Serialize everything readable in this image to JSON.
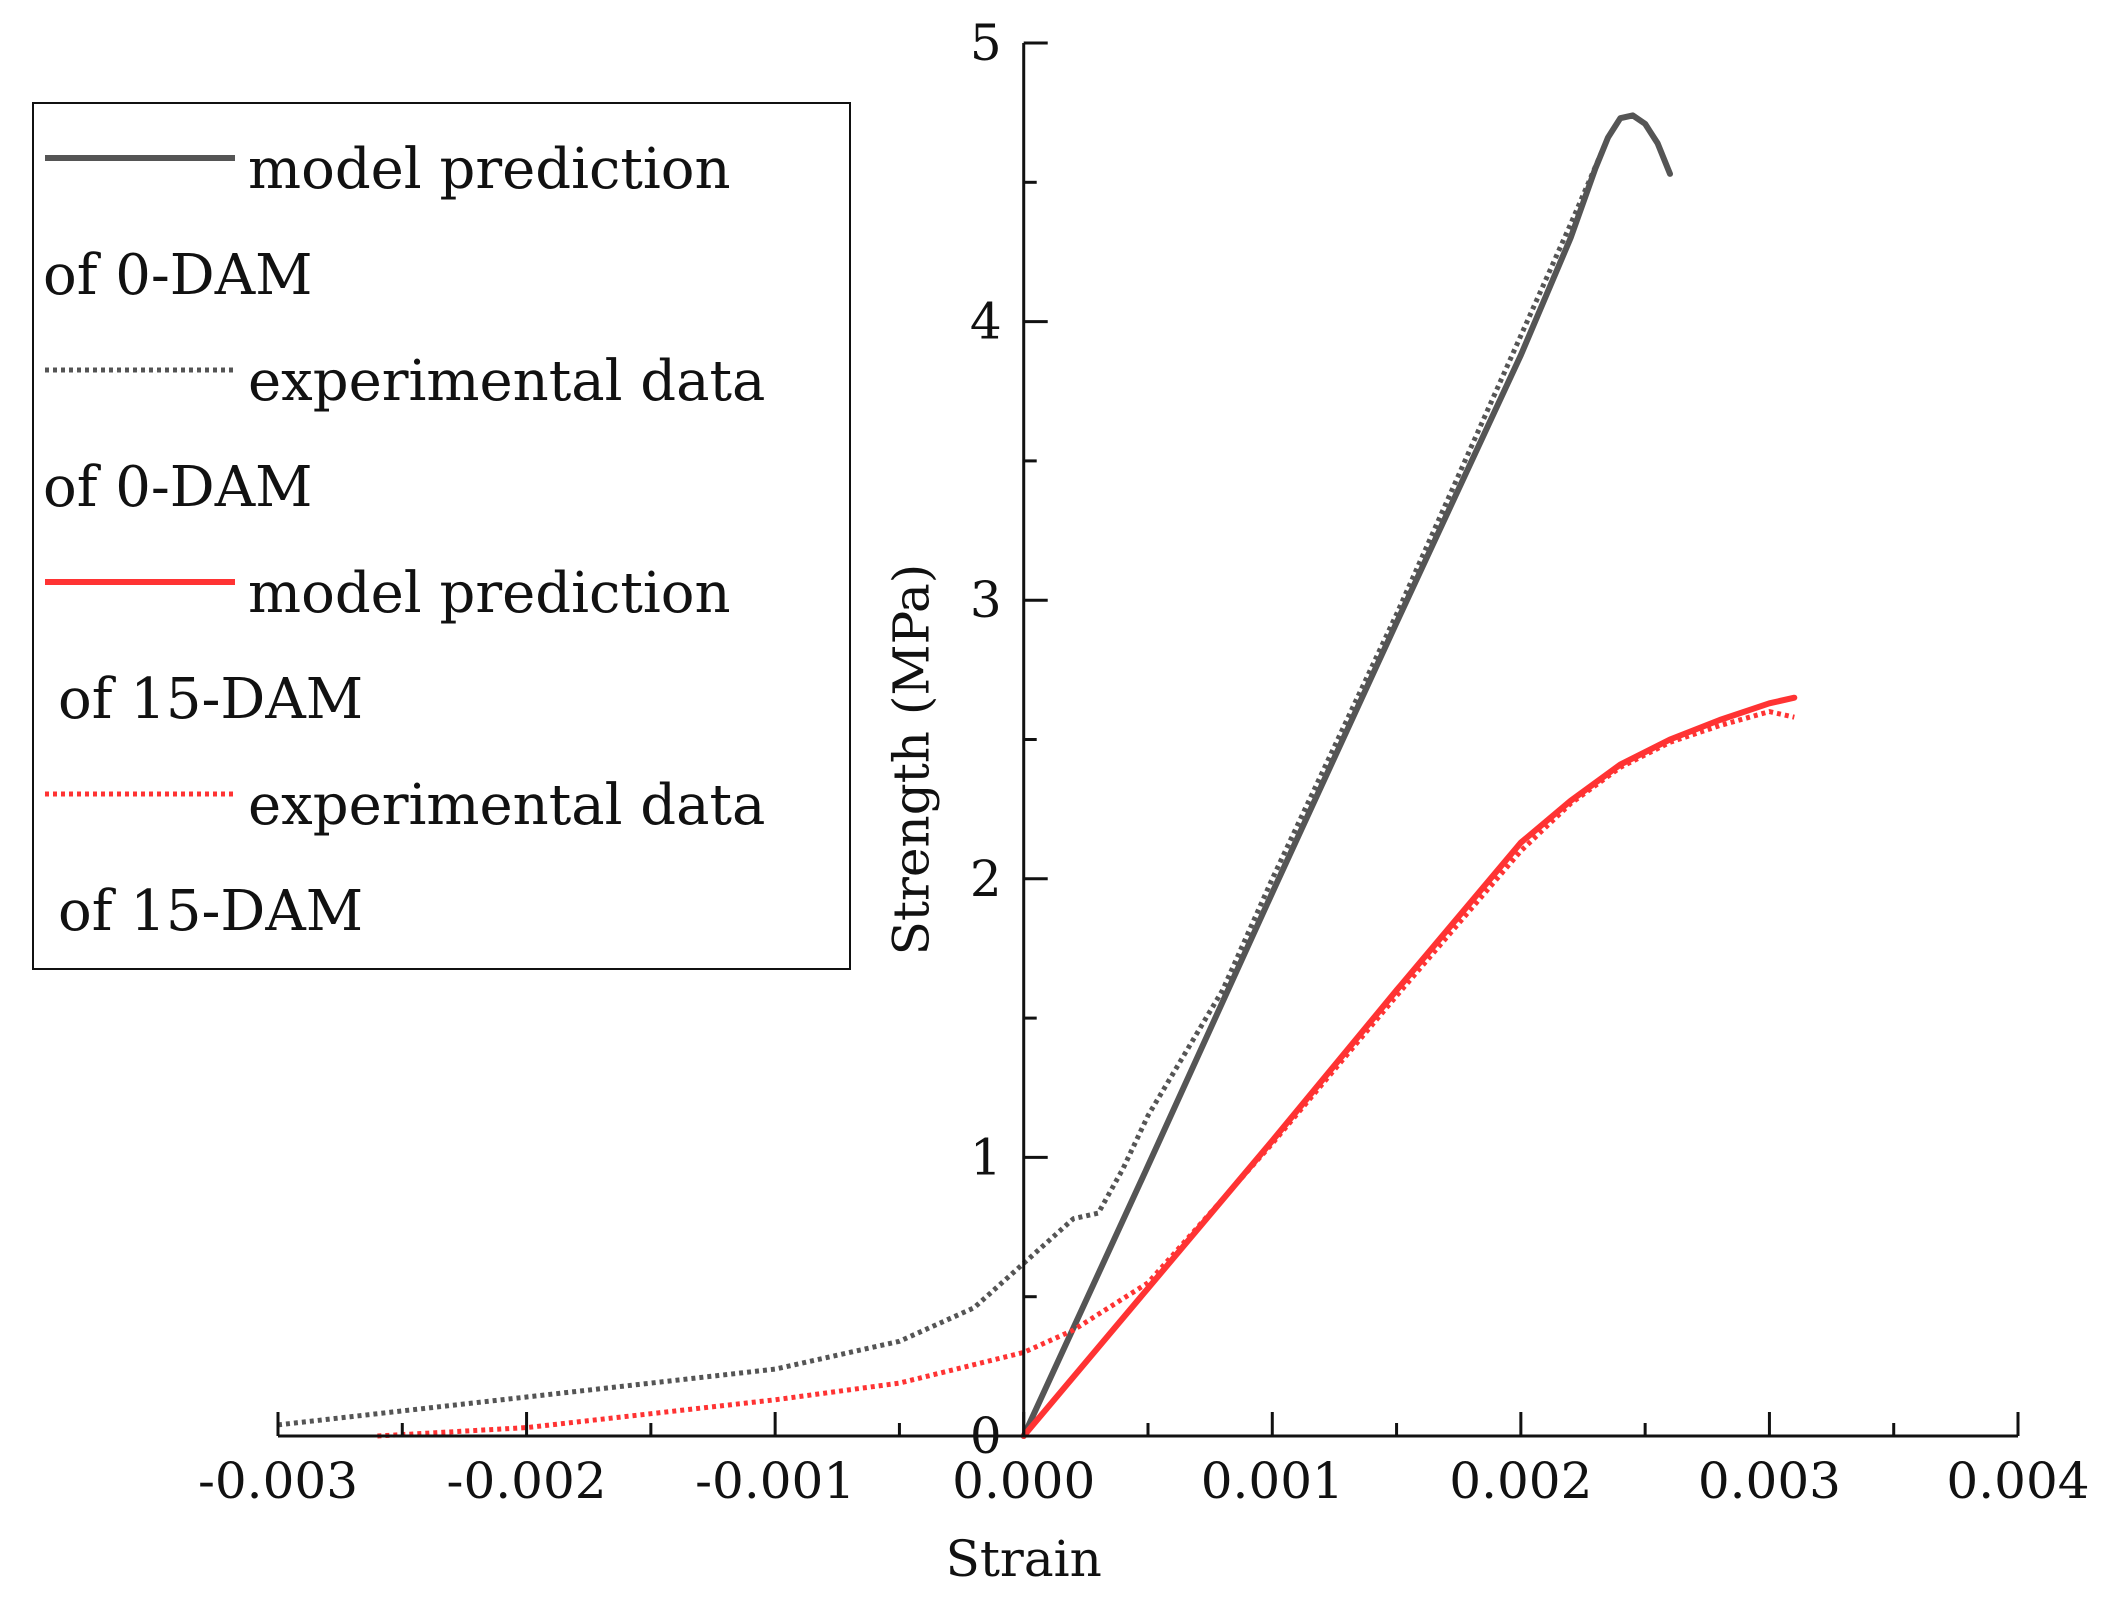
{
  "chart_data": {
    "type": "line",
    "title": "",
    "xlabel": "Strain",
    "ylabel": "Strength (MPa)",
    "xlim": [
      -0.003,
      0.004
    ],
    "ylim": [
      0,
      5
    ],
    "x_ticks": [
      "-0.003",
      "-0.002",
      "-0.001",
      "0.000",
      "0.001",
      "0.002",
      "0.003",
      "0.004"
    ],
    "x_tick_values": [
      -0.003,
      -0.002,
      -0.001,
      0.0,
      0.001,
      0.002,
      0.003,
      0.004
    ],
    "y_ticks": [
      "0",
      "1",
      "2",
      "3",
      "4",
      "5"
    ],
    "y_tick_values": [
      0,
      1,
      2,
      3,
      4,
      5
    ],
    "grid": false,
    "legend_position": "top-left",
    "series": [
      {
        "name": "model prediction of 0-DAM",
        "legend_lines": [
          "model prediction",
          "of 0-DAM"
        ],
        "color": "#555555",
        "style": "solid",
        "points": [
          [
            0.0,
            0.0
          ],
          [
            0.0005,
            0.97
          ],
          [
            0.001,
            1.95
          ],
          [
            0.0015,
            2.92
          ],
          [
            0.002,
            3.88
          ],
          [
            0.0022,
            4.3
          ],
          [
            0.0023,
            4.55
          ],
          [
            0.00235,
            4.66
          ],
          [
            0.0024,
            4.73
          ],
          [
            0.00245,
            4.74
          ],
          [
            0.0025,
            4.71
          ],
          [
            0.00255,
            4.64
          ],
          [
            0.0026,
            4.53
          ]
        ]
      },
      {
        "name": "experimental data of 0-DAM",
        "legend_lines": [
          "experimental data",
          "of 0-DAM"
        ],
        "color": "#555555",
        "style": "dotted",
        "points": [
          [
            -0.003,
            0.04
          ],
          [
            -0.0025,
            0.09
          ],
          [
            -0.002,
            0.14
          ],
          [
            -0.0015,
            0.19
          ],
          [
            -0.001,
            0.24
          ],
          [
            -0.0005,
            0.34
          ],
          [
            -0.0002,
            0.46
          ],
          [
            0.0,
            0.62
          ],
          [
            0.0002,
            0.78
          ],
          [
            0.0003,
            0.8
          ],
          [
            0.0004,
            0.96
          ],
          [
            0.0005,
            1.15
          ],
          [
            0.0006,
            1.3
          ],
          [
            0.0008,
            1.6
          ],
          [
            0.001,
            2.0
          ],
          [
            0.0015,
            2.95
          ],
          [
            0.002,
            3.95
          ],
          [
            0.0022,
            4.35
          ],
          [
            0.00235,
            4.66
          ]
        ]
      },
      {
        "name": "model prediction of 15-DAM",
        "legend_lines": [
          "model prediction",
          "of 15-DAM"
        ],
        "color": "#ff3333",
        "style": "solid",
        "points": [
          [
            0.0,
            0.0
          ],
          [
            0.0005,
            0.53
          ],
          [
            0.001,
            1.06
          ],
          [
            0.0015,
            1.6
          ],
          [
            0.002,
            2.13
          ],
          [
            0.0022,
            2.28
          ],
          [
            0.0024,
            2.41
          ],
          [
            0.0026,
            2.5
          ],
          [
            0.0028,
            2.57
          ],
          [
            0.003,
            2.63
          ],
          [
            0.0031,
            2.65
          ]
        ]
      },
      {
        "name": "experimental data of 15-DAM",
        "legend_lines": [
          "experimental data",
          "of 15-DAM"
        ],
        "color": "#ff3333",
        "style": "dotted",
        "points": [
          [
            -0.0026,
            0.0
          ],
          [
            -0.002,
            0.03
          ],
          [
            -0.0015,
            0.08
          ],
          [
            -0.001,
            0.13
          ],
          [
            -0.0005,
            0.19
          ],
          [
            0.0,
            0.3
          ],
          [
            0.0002,
            0.38
          ],
          [
            0.0005,
            0.55
          ],
          [
            0.001,
            1.05
          ],
          [
            0.0015,
            1.58
          ],
          [
            0.002,
            2.1
          ],
          [
            0.0022,
            2.27
          ],
          [
            0.0024,
            2.4
          ],
          [
            0.0026,
            2.49
          ],
          [
            0.0028,
            2.55
          ],
          [
            0.003,
            2.6
          ],
          [
            0.0031,
            2.58
          ]
        ]
      }
    ]
  }
}
